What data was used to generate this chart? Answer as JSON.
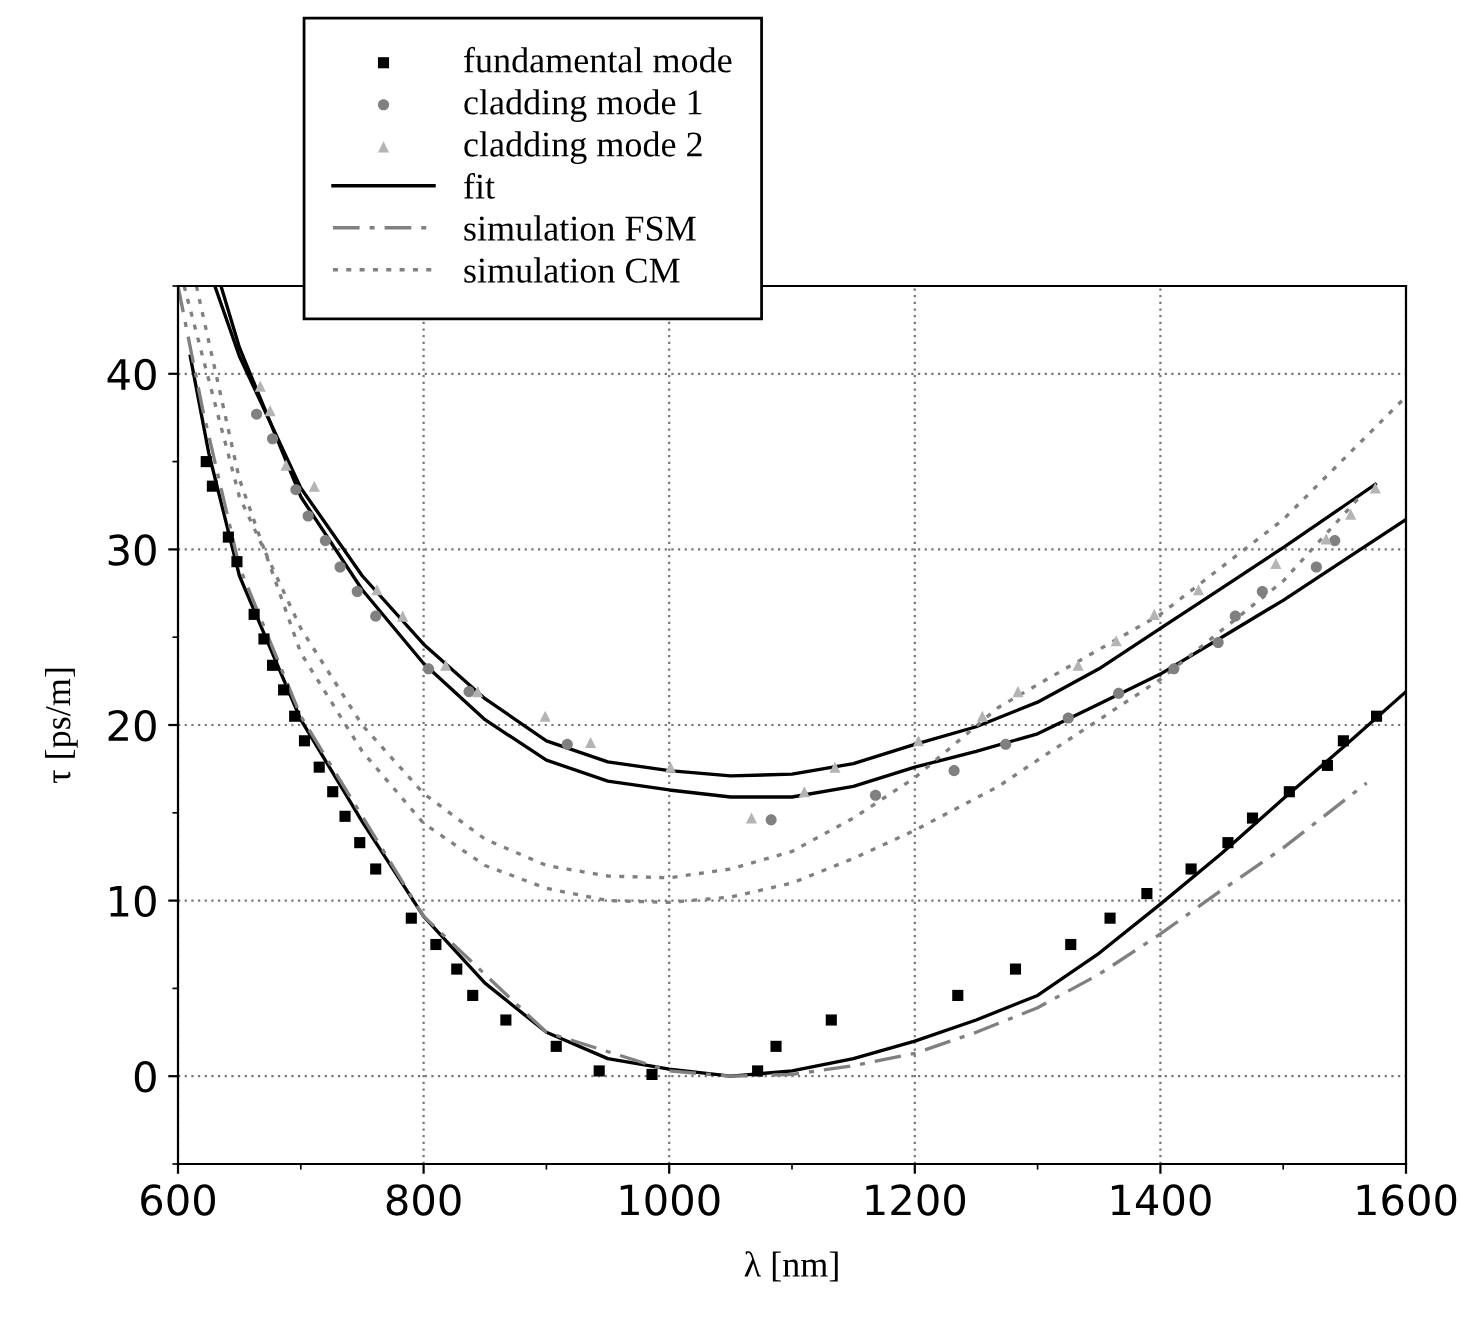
{
  "chart_data": {
    "type": "scatter",
    "xlabel": "λ [nm]",
    "ylabel": "τ [ps/m]",
    "xlim": [
      600,
      1600
    ],
    "ylim": [
      -5,
      45
    ],
    "xticks": [
      600,
      800,
      1000,
      1200,
      1400,
      1600
    ],
    "yticks": [
      0,
      10,
      20,
      30,
      40
    ],
    "grid": true,
    "legend": "top left",
    "series": [
      {
        "name": "fundamental mode",
        "marker": "square",
        "color": "#000000",
        "x": [
          623,
          628,
          641,
          648,
          662,
          670,
          677,
          686,
          695,
          703,
          715,
          726,
          736,
          748,
          761,
          790,
          810,
          827,
          840,
          867,
          908,
          943,
          986,
          1072,
          1087,
          1132,
          1235,
          1282,
          1327,
          1359,
          1389,
          1425,
          1455,
          1475,
          1505,
          1536,
          1549,
          1576
        ],
        "values": [
          35.0,
          33.6,
          30.7,
          29.3,
          26.3,
          24.9,
          23.4,
          22.0,
          20.5,
          19.1,
          17.6,
          16.2,
          14.8,
          13.3,
          11.8,
          9.0,
          7.5,
          6.1,
          4.6,
          3.2,
          1.7,
          0.3,
          0.1,
          0.3,
          1.7,
          3.2,
          4.6,
          6.1,
          7.5,
          9.0,
          10.4,
          11.8,
          13.3,
          14.7,
          16.2,
          17.7,
          19.1,
          20.5
        ]
      },
      {
        "name": "cladding mode 1",
        "marker": "circle",
        "color": "#808080",
        "x": [
          664,
          677,
          696,
          706,
          720,
          732,
          746,
          761,
          804,
          837,
          917,
          1083,
          1168,
          1232,
          1274,
          1325,
          1366,
          1411,
          1447,
          1461,
          1483,
          1527,
          1542
        ],
        "values": [
          37.7,
          36.3,
          33.4,
          31.9,
          30.5,
          29.0,
          27.6,
          26.2,
          23.2,
          21.9,
          18.9,
          14.6,
          16.0,
          17.4,
          18.9,
          20.4,
          21.8,
          23.2,
          24.7,
          26.2,
          27.6,
          29.0,
          30.5
        ]
      },
      {
        "name": "cladding mode 2",
        "marker": "triangle",
        "color": "#b4b4b4",
        "x": [
          667,
          675,
          688,
          711,
          762,
          783,
          818,
          844,
          899,
          936,
          1001,
          1067,
          1110,
          1135,
          1203,
          1255,
          1284,
          1333,
          1364,
          1395,
          1431,
          1494,
          1535,
          1555,
          1575
        ],
        "values": [
          39.3,
          37.9,
          34.8,
          33.6,
          27.7,
          26.2,
          23.4,
          21.9,
          20.5,
          19.0,
          17.6,
          14.7,
          16.2,
          17.6,
          19.1,
          20.5,
          21.9,
          23.4,
          24.8,
          26.3,
          27.7,
          29.2,
          30.6,
          32.0,
          33.5
        ]
      },
      {
        "name": "fit",
        "type": "line",
        "line_style": "solid",
        "color": "#000000",
        "x": [
          610,
          625,
          650,
          700,
          750,
          800,
          850,
          900,
          950,
          1000,
          1050,
          1100,
          1150,
          1200,
          1250,
          1300,
          1350,
          1400,
          1450,
          1500,
          1550,
          1600
        ],
        "values": [
          41,
          35.5,
          28.5,
          20.3,
          14.5,
          9.1,
          5.3,
          2.5,
          1.0,
          0.4,
          0.0,
          0.3,
          1.0,
          2.0,
          3.2,
          4.6,
          7.0,
          9.8,
          12.7,
          15.8,
          18.8,
          21.9
        ]
      },
      {
        "type": "line",
        "line_style": "solid",
        "color": "#000000",
        "x": [
          630,
          650,
          700,
          750,
          800,
          850,
          900,
          950,
          1000,
          1050,
          1100,
          1150,
          1200,
          1250,
          1300,
          1350,
          1400,
          1450,
          1500,
          1550,
          1575
        ],
        "values": [
          45,
          41,
          33.5,
          28.5,
          24.6,
          21.5,
          19.1,
          17.9,
          17.4,
          17.1,
          17.2,
          17.8,
          18.9,
          19.9,
          21.3,
          23.2,
          25.5,
          27.8,
          30.1,
          32.5,
          33.7
        ]
      },
      {
        "type": "line",
        "line_style": "solid",
        "color": "#000000",
        "x": [
          635,
          650,
          700,
          750,
          800,
          850,
          900,
          950,
          1000,
          1050,
          1100,
          1150,
          1200,
          1250,
          1300,
          1350,
          1400,
          1450,
          1500,
          1550,
          1600
        ],
        "values": [
          45,
          41.5,
          33,
          27.7,
          23.5,
          20.3,
          18.0,
          16.8,
          16.3,
          15.9,
          15.9,
          16.5,
          17.6,
          18.5,
          19.5,
          21.2,
          22.9,
          25.0,
          27.1,
          29.4,
          31.7
        ]
      },
      {
        "name": "simulation FSM",
        "type": "line",
        "line_style": "dashdot",
        "color": "#808080",
        "x": [
          600,
          620,
          650,
          700,
          800,
          900,
          1000,
          1050,
          1100,
          1150,
          1200,
          1250,
          1300,
          1350,
          1400,
          1450,
          1500,
          1568
        ],
        "values": [
          45,
          38,
          29,
          20.5,
          9.1,
          2.5,
          0.3,
          0.0,
          0.1,
          0.6,
          1.3,
          2.5,
          3.9,
          5.8,
          8.1,
          10.6,
          13.0,
          16.7
        ]
      },
      {
        "name": "simulation CM",
        "type": "line",
        "line_style": "dotted",
        "color": "#808080",
        "x": [
          605,
          650,
          700,
          750,
          800,
          850,
          900,
          950,
          1000,
          1050,
          1100,
          1150,
          1200,
          1268,
          1300,
          1400,
          1500,
          1600
        ],
        "values": [
          45,
          33,
          25.5,
          20,
          16.1,
          13.5,
          12.0,
          11.4,
          11.3,
          11.8,
          12.8,
          14.7,
          17.0,
          21.0,
          22.3,
          26.3,
          31.7,
          38.7
        ]
      },
      {
        "type": "line",
        "line_style": "dotted",
        "color": "#808080",
        "x": [
          615,
          650,
          700,
          750,
          800,
          850,
          900,
          950,
          1000,
          1050,
          1100,
          1150,
          1200,
          1268,
          1300,
          1400,
          1500,
          1565
        ],
        "values": [
          45,
          34,
          24.1,
          18.5,
          14.4,
          12.0,
          10.7,
          10.0,
          9.9,
          10.2,
          11.0,
          12.4,
          14.0,
          16.5,
          18.0,
          22.6,
          28.2,
          33.2
        ]
      }
    ]
  }
}
